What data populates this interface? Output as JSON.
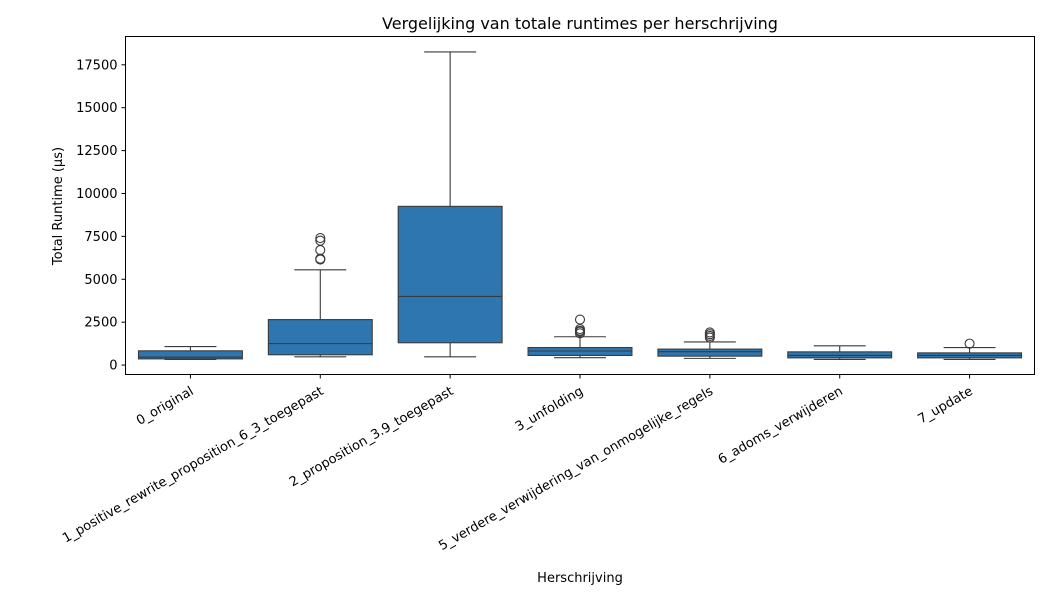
{
  "chart_data": {
    "type": "boxplot",
    "title": "Vergelijking van totale runtimes per herschrijving",
    "xlabel": "Herschrijving",
    "ylabel": "Total Runtime (µs)",
    "ylim": [
      -550,
      19150
    ],
    "yticks": [
      0,
      2500,
      5000,
      7500,
      10000,
      12500,
      15000,
      17500
    ],
    "grid": false,
    "box_color": "#2e76b0",
    "line_color": "#3a3a3a",
    "categories": [
      "0_original",
      "1_positive_rewrite_proposition_6_3_toegepast",
      "2_proposition_3.9_toegepast",
      "3_unfolding",
      "5_verdere_verwijdering_van_onmogelijke_regels",
      "6_adoms_verwijderen",
      "7_update"
    ],
    "boxes": [
      {
        "whisker_low": 330,
        "q1": 360,
        "median": 460,
        "q3": 830,
        "whisker_high": 1080,
        "outliers": []
      },
      {
        "whisker_low": 480,
        "q1": 600,
        "median": 1250,
        "q3": 2650,
        "whisker_high": 5550,
        "outliers": [
          6150,
          6200,
          6700,
          7250,
          7400
        ]
      },
      {
        "whisker_low": 480,
        "q1": 1300,
        "median": 4000,
        "q3": 9250,
        "whisker_high": 18250,
        "outliers": []
      },
      {
        "whisker_low": 430,
        "q1": 560,
        "median": 820,
        "q3": 1020,
        "whisker_high": 1650,
        "outliers": [
          1850,
          1950,
          2000,
          2100,
          2650
        ]
      },
      {
        "whisker_low": 390,
        "q1": 520,
        "median": 780,
        "q3": 930,
        "whisker_high": 1350,
        "outliers": [
          1600,
          1700,
          1800,
          1900
        ]
      },
      {
        "whisker_low": 330,
        "q1": 420,
        "median": 560,
        "q3": 770,
        "whisker_high": 1120,
        "outliers": []
      },
      {
        "whisker_low": 330,
        "q1": 420,
        "median": 560,
        "q3": 710,
        "whisker_high": 1020,
        "outliers": [
          1250
        ]
      }
    ]
  }
}
